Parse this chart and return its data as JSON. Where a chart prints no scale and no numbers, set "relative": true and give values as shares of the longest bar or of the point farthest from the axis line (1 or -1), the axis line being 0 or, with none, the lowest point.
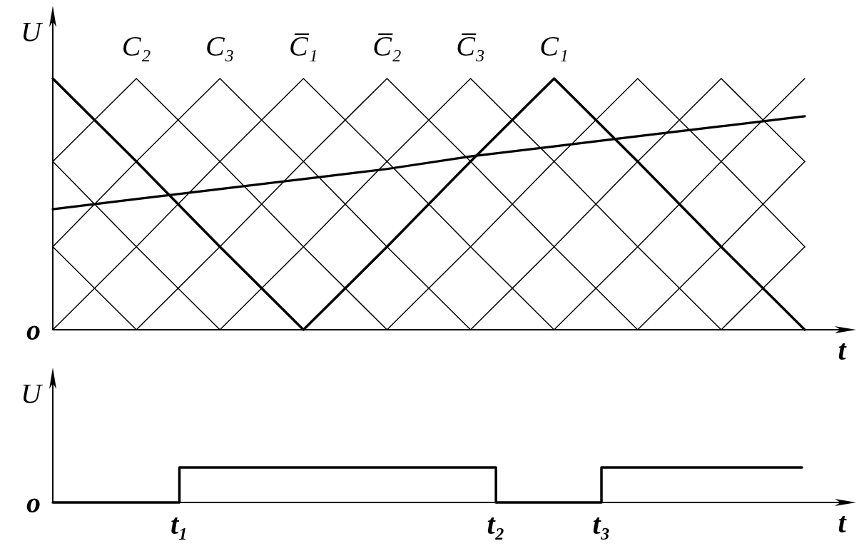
{
  "chart_data": [
    {
      "type": "line",
      "xlabel": "t",
      "ylabel": "U",
      "relative": true,
      "categories": [
        null,
        null,
        null,
        null,
        null,
        null,
        null,
        null,
        null,
        null
      ],
      "series": [
        {
          "name": "C₁",
          "color": "#000000",
          "values": [
            1,
            0.67,
            0.33,
            0,
            0.33,
            0.67,
            1,
            0.67,
            0.33,
            0
          ]
        },
        {
          "name": "C₂",
          "color": "#000000",
          "values": [
            0.67,
            1,
            0.67,
            0.33,
            0,
            0.33,
            0.67,
            1,
            0.67,
            0.33
          ]
        },
        {
          "name": "C₃",
          "color": "#000000",
          "values": [
            0.33,
            0.67,
            1,
            0.67,
            0.33,
            0,
            0.33,
            0.67,
            1,
            0.67
          ]
        },
        {
          "name": "C̅₁",
          "color": "#000000",
          "values": [
            0,
            0.33,
            0.67,
            1,
            0.67,
            0.33,
            0,
            0.33,
            0.67,
            1
          ]
        },
        {
          "name": "C̅₂",
          "color": "#000000",
          "values": [
            0.33,
            0,
            0.33,
            0.67,
            1,
            0.67,
            0.33,
            0,
            0.33,
            0.67
          ]
        },
        {
          "name": "C̅₃",
          "color": "#000000",
          "values": [
            0.67,
            0.33,
            0,
            0.33,
            0.67,
            1,
            0.67,
            0.33,
            0,
            0.33
          ]
        },
        {
          "color": "#000000",
          "values": [
            0.48,
            0.52,
            0.56,
            0.6,
            0.64,
            0.69,
            0.73,
            0.77,
            0.81,
            0.85
          ]
        }
      ],
      "annotations": [
        "o"
      ]
    },
    {
      "type": "step",
      "xlabel": "t",
      "ylabel": "U",
      "relative": true,
      "tick_labels": "x",
      "categories": [
        null,
        null,
        null,
        null,
        null,
        null,
        null,
        null,
        null,
        null,
        null,
        null,
        "t₁",
        null,
        null,
        null,
        null,
        null,
        null,
        null,
        null,
        null,
        null,
        null,
        null,
        null,
        null,
        null,
        null,
        null,
        null,
        null,
        null,
        null,
        null,
        null,
        null,
        null,
        null,
        null,
        null,
        null,
        "t₂",
        null,
        null,
        null,
        null,
        null,
        null,
        null,
        null,
        null,
        "t₃",
        null,
        null,
        null,
        null,
        null,
        null,
        null,
        null,
        null,
        null,
        null,
        null,
        null,
        null,
        null,
        null,
        null,
        null,
        null
      ],
      "values": [
        0,
        0,
        0,
        0,
        0,
        0,
        0,
        0,
        0,
        0,
        0,
        0,
        1,
        1,
        1,
        1,
        1,
        1,
        1,
        1,
        1,
        1,
        1,
        1,
        1,
        1,
        1,
        1,
        1,
        1,
        1,
        1,
        1,
        1,
        1,
        1,
        1,
        1,
        1,
        1,
        1,
        1,
        0,
        0,
        0,
        0,
        0,
        0,
        0,
        0,
        0,
        0,
        1,
        1,
        1,
        1,
        1,
        1,
        1,
        1,
        1,
        1,
        1,
        1,
        1,
        1,
        1,
        1,
        1,
        1,
        1,
        1
      ],
      "color": "#000000",
      "annotations": [
        "o"
      ]
    }
  ]
}
